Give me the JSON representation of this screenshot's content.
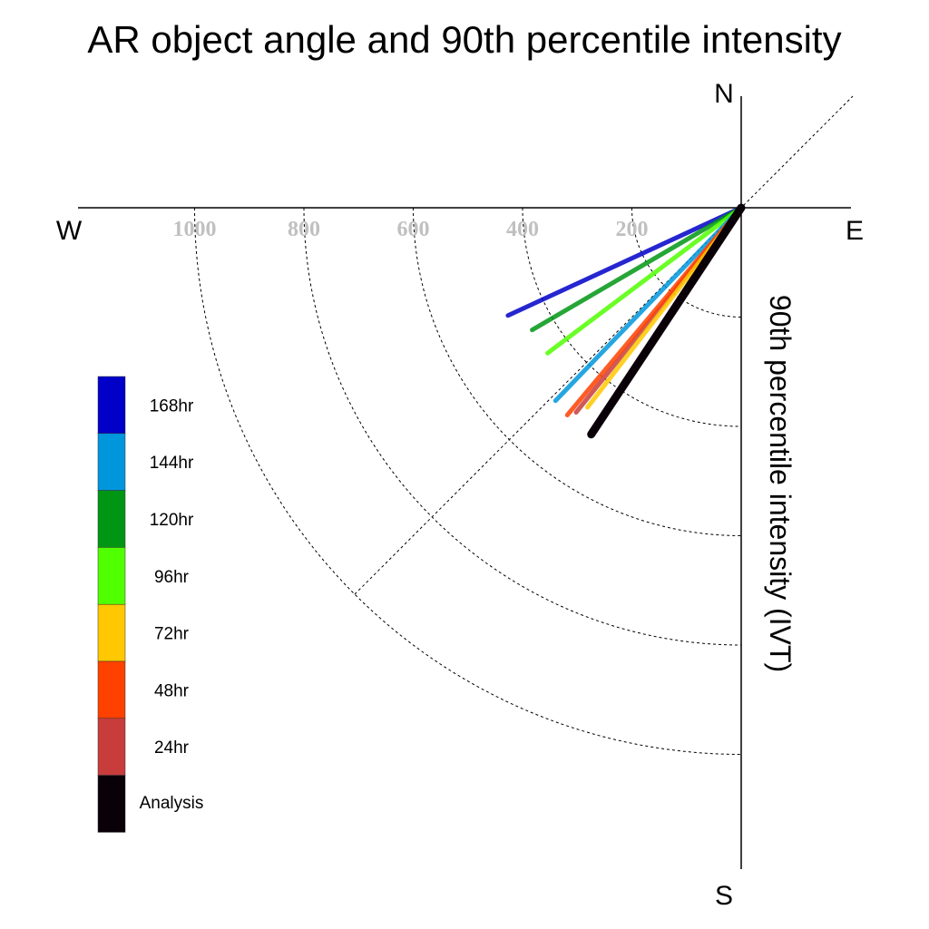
{
  "chart_data": {
    "type": "polar-vector",
    "title": "AR object angle and 90th percentile intensity",
    "ylabel": "90th percentile intensity (IVT)",
    "compass": {
      "north": "N",
      "south": "S",
      "east": "E",
      "west": "W"
    },
    "radial_ticks": [
      200,
      400,
      600,
      800,
      1000
    ],
    "radial_tick_labels": [
      "200",
      "400",
      "600",
      "800",
      "1000"
    ],
    "rlim": [
      0,
      1200
    ],
    "grid": true,
    "legend_position": "left",
    "series": [
      {
        "name": "168hr",
        "color": "#0000c8",
        "intensity": 470,
        "angle_below_west_deg": 24.8
      },
      {
        "name": "144hr",
        "color": "#0096dc",
        "intensity": 490,
        "angle_below_west_deg": 46.1
      },
      {
        "name": "120hr",
        "color": "#009614",
        "intensity": 443,
        "angle_below_west_deg": 30.3
      },
      {
        "name": "96hr",
        "color": "#50ff00",
        "intensity": 443,
        "angle_below_west_deg": 36.9
      },
      {
        "name": "72hr",
        "color": "#ffc800",
        "intensity": 461,
        "angle_below_west_deg": 52.4
      },
      {
        "name": "48hr",
        "color": "#ff4100",
        "intensity": 495,
        "angle_below_west_deg": 50.0
      },
      {
        "name": "24hr",
        "color": "#c83c3c",
        "intensity": 481,
        "angle_below_west_deg": 51.1
      },
      {
        "name": "Analysis",
        "color": "#0a0008",
        "intensity": 497,
        "angle_below_west_deg": 56.5
      }
    ]
  }
}
